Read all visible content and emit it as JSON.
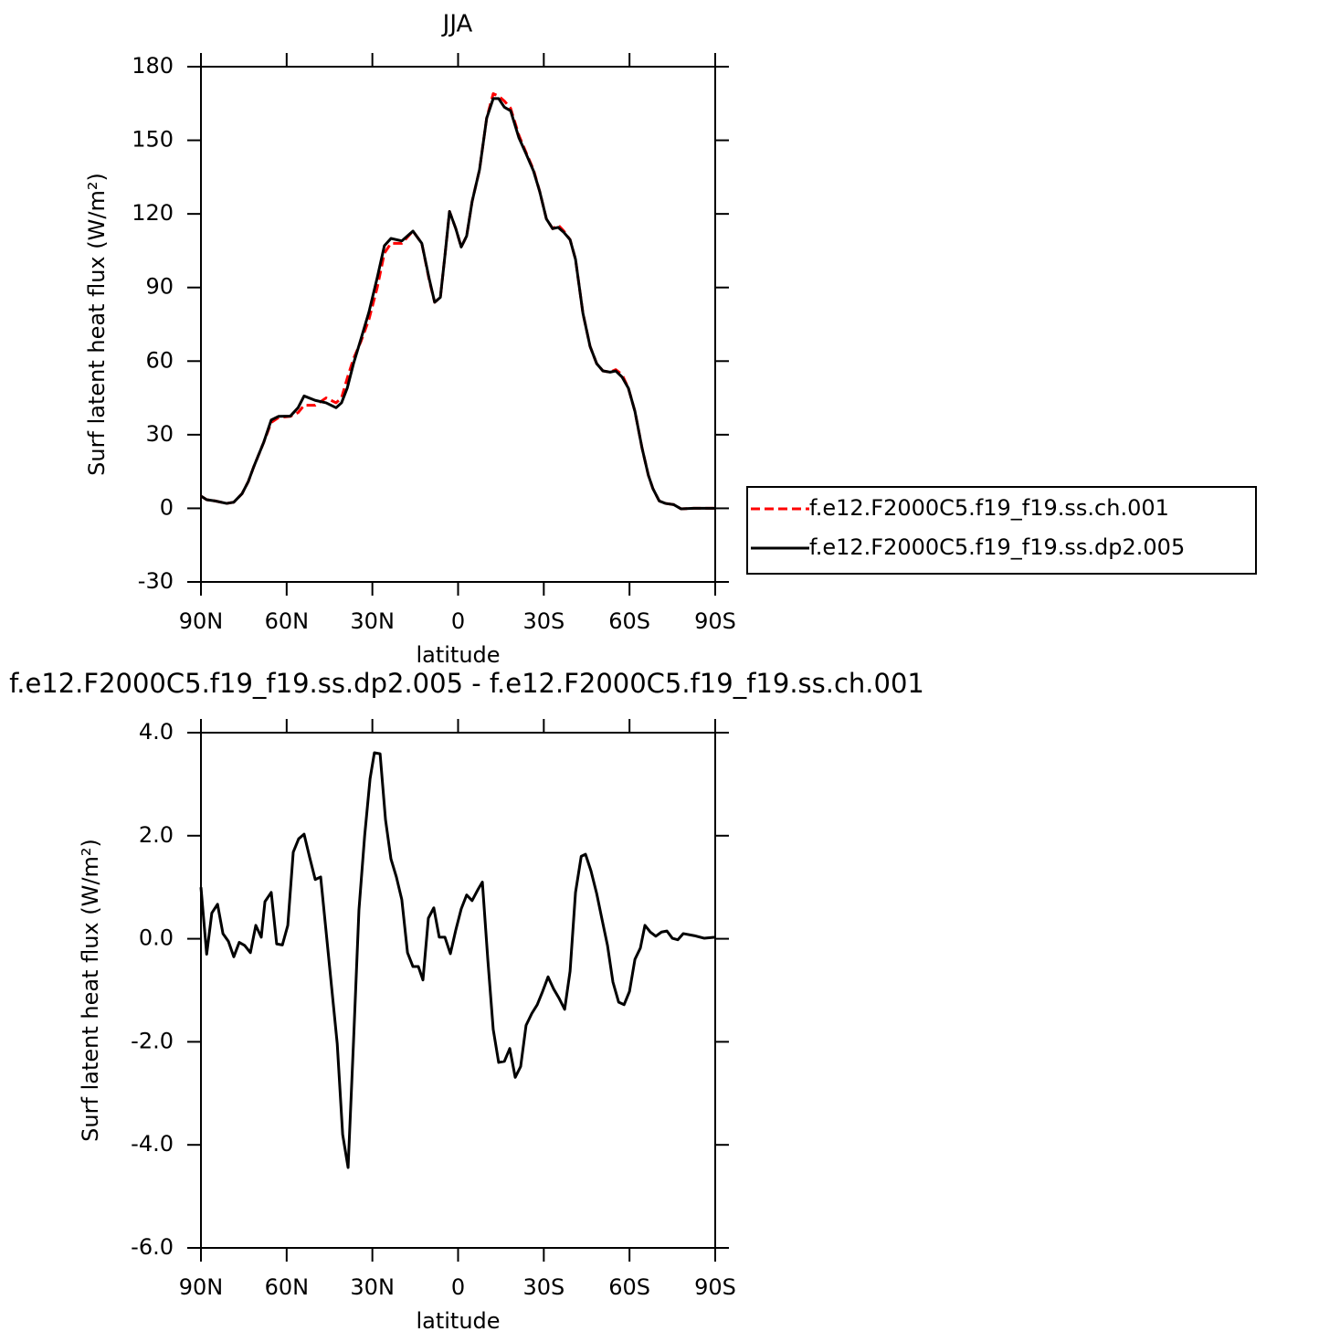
{
  "chart_data": [
    {
      "type": "line",
      "title": "JJA",
      "xlabel": "latitude",
      "ylabel": "Surf latent heat flux (W/m²)",
      "x": [
        90,
        88,
        85,
        81,
        78.5,
        75.6,
        73.4,
        71.5,
        68,
        65.4,
        62.8,
        58.7,
        56,
        53.9,
        50,
        46.2,
        42.7,
        40.8,
        38.8,
        36.6,
        34,
        31.2,
        28.3,
        25.8,
        23.5,
        19.7,
        15.8,
        12.7,
        10.1,
        8.2,
        6.2,
        4.6,
        3,
        0.8,
        -1.1,
        -3,
        -4.9,
        -7.5,
        -10,
        -12.3,
        -14.2,
        -16.2,
        -18.4,
        -21.3,
        -23.8,
        -26.4,
        -28.6,
        -30.9,
        -33.1,
        -35,
        -37,
        -39.2,
        -41.1,
        -43.7,
        -46.2,
        -48.5,
        -50.7,
        -53.2,
        -55.2,
        -57.4,
        -59.6,
        -61.9,
        -64.4,
        -66.6,
        -68.2,
        -70.4,
        -72.6,
        -75.5,
        -78,
        -82.5,
        -90
      ],
      "series": [
        {
          "name": "f.e12.F2000C5.f19_f19.ss.ch.001",
          "color": "#ff0000",
          "line_style": "dashed",
          "values": [
            5,
            3.5,
            3,
            2,
            2.5,
            6,
            11,
            17,
            27,
            35,
            37,
            37.5,
            39,
            42,
            42,
            45,
            43,
            45,
            53,
            61,
            68,
            77,
            90,
            104,
            108,
            108,
            113,
            108,
            93,
            84,
            86,
            103,
            121,
            114,
            106.5,
            111,
            125,
            138,
            159,
            169,
            168,
            166,
            163,
            152,
            145,
            138,
            129,
            118,
            114,
            115.5,
            113,
            109.5,
            101.5,
            79.5,
            66,
            59,
            56,
            55.5,
            56.5,
            54.5,
            49,
            39.5,
            24.5,
            13.5,
            8,
            3,
            2,
            1.5,
            -0.2,
            0,
            0
          ]
        },
        {
          "name": "f.e12.F2000C5.f19_f19.ss.dp2.005",
          "color": "#000000",
          "line_style": "solid",
          "values": [
            5,
            3.5,
            3,
            2,
            2.5,
            6,
            11,
            17,
            27,
            36,
            37.5,
            37.6,
            41,
            45.8,
            44,
            43,
            41,
            43,
            49,
            59,
            69,
            80,
            94,
            107,
            110,
            109,
            113,
            108,
            93.5,
            84,
            86,
            103,
            121,
            114,
            106.5,
            111,
            125,
            138,
            159,
            167,
            167,
            163.5,
            162,
            151,
            144.5,
            137.5,
            129,
            118,
            114,
            114.5,
            112.5,
            109.5,
            101.5,
            79.5,
            66,
            59,
            56,
            55.5,
            56,
            53.5,
            49,
            39.5,
            24.5,
            13.5,
            8,
            3,
            2,
            1.5,
            -0.2,
            0,
            0
          ]
        }
      ],
      "xlim": [
        90,
        -90
      ],
      "xticks": [
        {
          "value": 90,
          "label": "90N"
        },
        {
          "value": 60,
          "label": "60N"
        },
        {
          "value": 30,
          "label": "30N"
        },
        0,
        {
          "value": -30,
          "label": "30S"
        },
        {
          "value": -60,
          "label": "60S"
        },
        {
          "value": -90,
          "label": "90S"
        }
      ],
      "ylim": [
        -30,
        180
      ],
      "yticks": [
        -30,
        0,
        30,
        60,
        90,
        120,
        150,
        180
      ],
      "legend": "right"
    },
    {
      "type": "line",
      "title": "f.e12.F2000C5.f19_f19.ss.dp2.005 - f.e12.F2000C5.f19_f19.ss.ch.001",
      "xlabel": "latitude",
      "ylabel": "Surf latent heat flux (W/m²)",
      "x": [
        90,
        88,
        86.2,
        84.2,
        82.3,
        80.4,
        78.5,
        76.6,
        74.7,
        72.7,
        70.8,
        68.9,
        67.6,
        65.4,
        63.5,
        61.5,
        59.6,
        57.7,
        55.8,
        53.9,
        52,
        50,
        48.1,
        46.2,
        44.3,
        42.3,
        40.4,
        38.5,
        36.6,
        34.7,
        32.7,
        30.8,
        29.3,
        27.3,
        25.4,
        23.5,
        21.6,
        19.7,
        17.7,
        15.8,
        13.9,
        12.3,
        10.4,
        8.5,
        6.6,
        4.6,
        2.7,
        0.8,
        -1.1,
        -3,
        -4.9,
        -6.9,
        -8.5,
        -10.4,
        -12.3,
        -14.2,
        -16.2,
        -18.1,
        -20,
        -21.9,
        -23.8,
        -25.8,
        -27.7,
        -29.6,
        -31.5,
        -33.4,
        -35.4,
        -37.3,
        -39.2,
        -41.1,
        -43.1,
        -44.6,
        -46.5,
        -48.5,
        -50.4,
        -52.3,
        -54.2,
        -56.2,
        -58.1,
        -60,
        -61.9,
        -63.8,
        -65.4,
        -67.3,
        -69.2,
        -71.2,
        -73.1,
        -75,
        -76.9,
        -78.8,
        -82.7,
        -86.2,
        -90
      ],
      "series": [
        {
          "color": "#000000",
          "line_style": "solid",
          "values": [
            1.0,
            -0.3,
            0.5,
            0.67,
            0.1,
            -0.05,
            -0.35,
            -0.07,
            -0.13,
            -0.27,
            0.26,
            0.03,
            0.72,
            0.9,
            -0.1,
            -0.12,
            0.26,
            1.68,
            1.94,
            2.03,
            1.59,
            1.15,
            1.2,
            0.14,
            -0.92,
            -2.04,
            -3.8,
            -4.44,
            -2.0,
            0.56,
            2.0,
            3.11,
            3.61,
            3.59,
            2.31,
            1.55,
            1.2,
            0.76,
            -0.27,
            -0.54,
            -0.54,
            -0.8,
            0.4,
            0.6,
            0.03,
            0.03,
            -0.29,
            0.17,
            0.58,
            0.85,
            0.74,
            0.95,
            1.1,
            -0.4,
            -1.76,
            -2.4,
            -2.38,
            -2.13,
            -2.69,
            -2.48,
            -1.68,
            -1.45,
            -1.28,
            -1.02,
            -0.74,
            -0.97,
            -1.16,
            -1.37,
            -0.63,
            0.9,
            1.6,
            1.64,
            1.32,
            0.88,
            0.37,
            -0.13,
            -0.84,
            -1.23,
            -1.28,
            -1.02,
            -0.4,
            -0.18,
            0.26,
            0.13,
            0.05,
            0.13,
            0.15,
            0.01,
            -0.02,
            0.1,
            0.06,
            0.01,
            0.03
          ]
        }
      ],
      "xlim": [
        90,
        -90
      ],
      "xticks": [
        {
          "value": 90,
          "label": "90N"
        },
        {
          "value": 60,
          "label": "60N"
        },
        {
          "value": 30,
          "label": "30N"
        },
        0,
        {
          "value": -30,
          "label": "30S"
        },
        {
          "value": -60,
          "label": "60S"
        },
        {
          "value": -90,
          "label": "90S"
        }
      ],
      "ylim": [
        -6,
        4
      ],
      "yticks": [
        {
          "value": -6,
          "label": "-6.0"
        },
        {
          "value": -4,
          "label": "-4.0"
        },
        {
          "value": -2,
          "label": "-2.0"
        },
        {
          "value": 0,
          "label": "0.0"
        },
        {
          "value": 2,
          "label": "2.0"
        },
        {
          "value": 4,
          "label": "4.0"
        }
      ]
    }
  ]
}
